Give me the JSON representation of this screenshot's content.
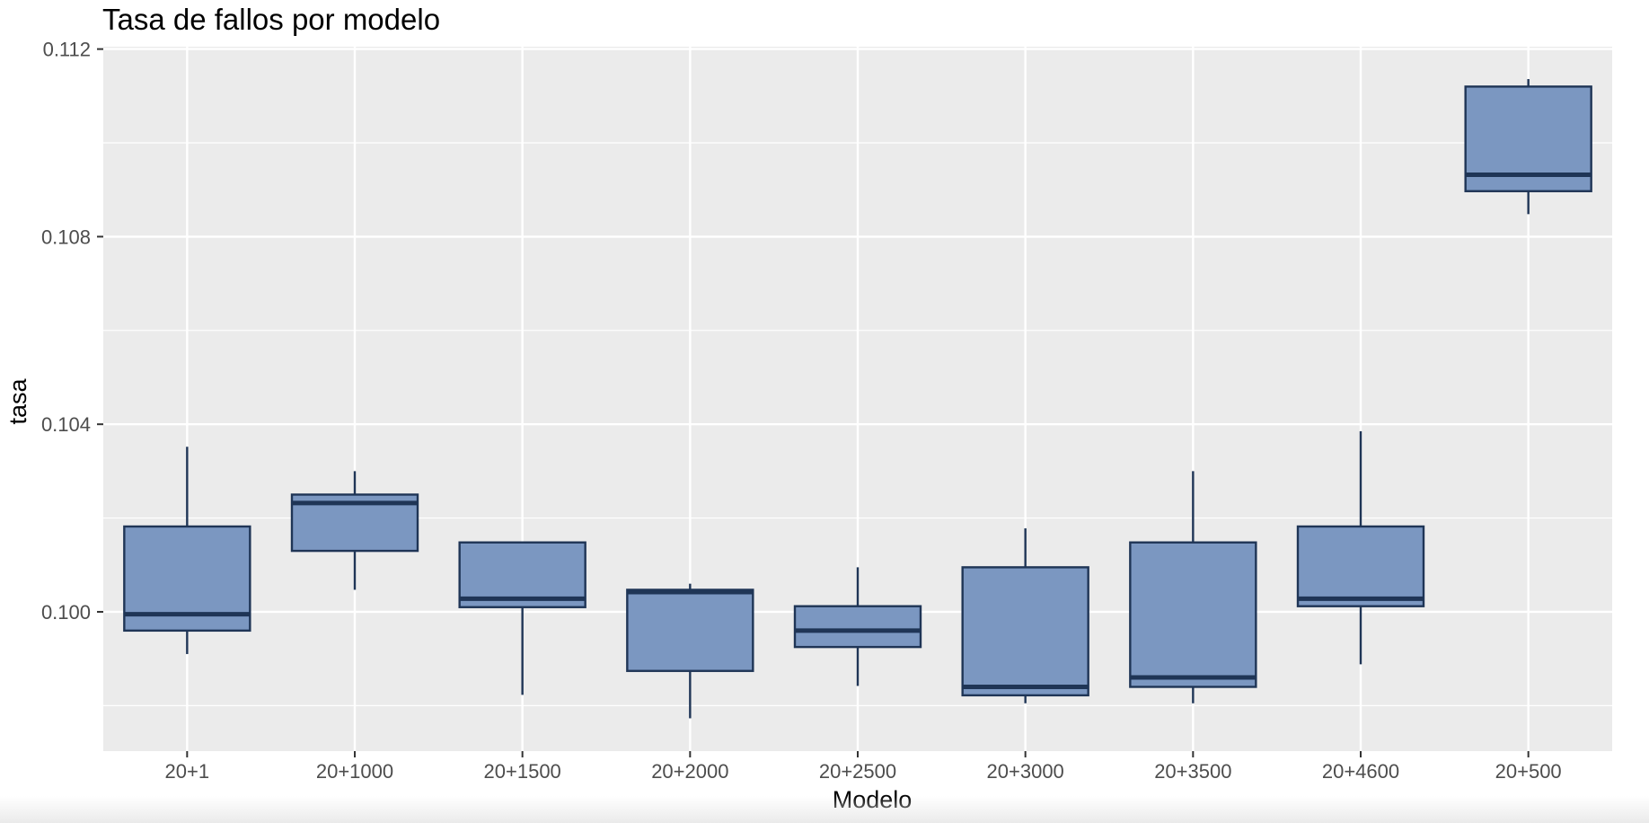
{
  "chart_data": {
    "type": "boxplot",
    "title": "Tasa de fallos por modelo",
    "xlabel": "Modelo",
    "ylabel": "tasa",
    "categories": [
      "20+1",
      "20+1000",
      "20+1500",
      "20+2000",
      "20+2500",
      "20+3000",
      "20+3500",
      "20+4600",
      "20+500"
    ],
    "ylim": [
      0.09703,
      0.11205
    ],
    "yticks": [
      0.1,
      0.104,
      0.108,
      0.112
    ],
    "ytick_labels": [
      "0.100",
      "0.104",
      "0.108",
      "0.112"
    ],
    "grid": true,
    "legend": "none",
    "colors": {
      "panel": "#ebebeb",
      "grid": "#ffffff",
      "box_fill": "#7b97c1",
      "box_stroke": "#1f3556"
    },
    "boxes": [
      {
        "category": "20+1",
        "whisker_low": 0.0991,
        "q1": 0.0996,
        "median": 0.09995,
        "q3": 0.10182,
        "whisker_high": 0.10352
      },
      {
        "category": "20+1000",
        "whisker_low": 0.10047,
        "q1": 0.1013,
        "median": 0.10232,
        "q3": 0.1025,
        "whisker_high": 0.103
      },
      {
        "category": "20+1500",
        "whisker_low": 0.09823,
        "q1": 0.1001,
        "median": 0.10028,
        "q3": 0.10148,
        "whisker_high": 0.10148
      },
      {
        "category": "20+2000",
        "whisker_low": 0.09773,
        "q1": 0.09874,
        "median": 0.10042,
        "q3": 0.10047,
        "whisker_high": 0.1006
      },
      {
        "category": "20+2500",
        "whisker_low": 0.09842,
        "q1": 0.09925,
        "median": 0.0996,
        "q3": 0.10012,
        "whisker_high": 0.10095
      },
      {
        "category": "20+3000",
        "whisker_low": 0.09805,
        "q1": 0.09822,
        "median": 0.0984,
        "q3": 0.10095,
        "whisker_high": 0.10178
      },
      {
        "category": "20+3500",
        "whisker_low": 0.09805,
        "q1": 0.0984,
        "median": 0.0986,
        "q3": 0.10148,
        "whisker_high": 0.103
      },
      {
        "category": "20+4600",
        "whisker_low": 0.09888,
        "q1": 0.10012,
        "median": 0.10028,
        "q3": 0.10182,
        "whisker_high": 0.10385
      },
      {
        "category": "20+500",
        "whisker_low": 0.10848,
        "q1": 0.10897,
        "median": 0.10932,
        "q3": 0.1112,
        "whisker_high": 0.11136
      }
    ]
  }
}
